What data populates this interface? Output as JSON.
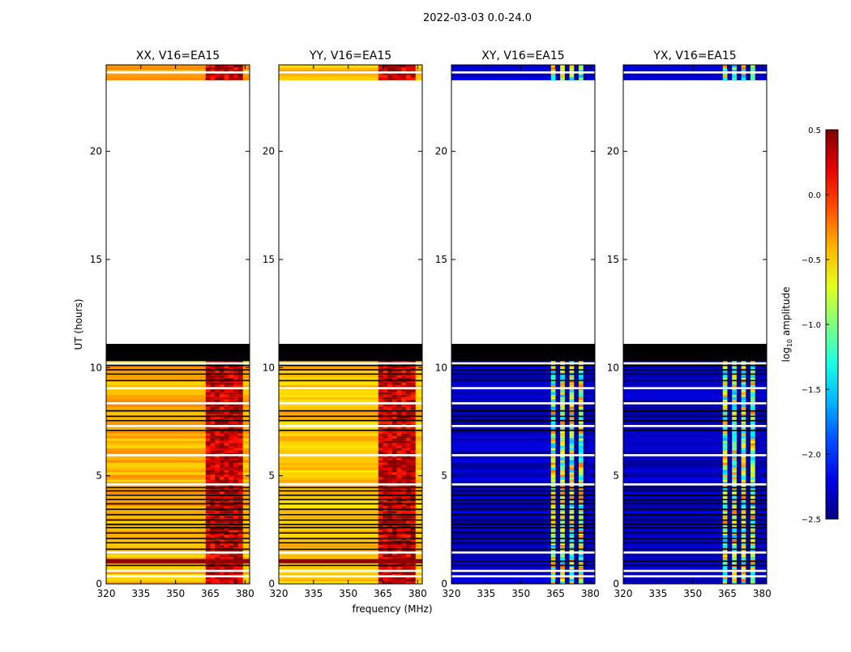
{
  "chart_data": {
    "type": "heatmap",
    "suptitle": "2022-03-03 0.0-24.0",
    "xlabel": "frequency (MHz)",
    "ylabel": "UT (hours)",
    "xlim": [
      320,
      382
    ],
    "ylim": [
      0,
      24
    ],
    "xticks": [
      320,
      335,
      350,
      365,
      380
    ],
    "yticks": [
      0,
      5,
      10,
      15,
      20
    ],
    "panels": [
      {
        "title": "XX, V16=EA15",
        "polarization": "XX",
        "base_level": -0.45,
        "rfi_level": 0.3,
        "show_ylabel": true
      },
      {
        "title": "YY, V16=EA15",
        "polarization": "YY",
        "base_level": -0.5,
        "rfi_level": 0.3,
        "show_ylabel": false
      },
      {
        "title": "XY, V16=EA15",
        "polarization": "XY",
        "base_level": -2.3,
        "rfi_level": -0.9,
        "show_ylabel": false
      },
      {
        "title": "YX, V16=EA15",
        "polarization": "YX",
        "base_level": -2.3,
        "rfi_level": -0.9,
        "show_ylabel": false
      }
    ],
    "data_segments_ut": [
      [
        0.0,
        11.1
      ],
      [
        23.3,
        24.0
      ]
    ],
    "missing_ut": [
      11.1,
      23.3
    ],
    "flagged_block_ut": [
      10.3,
      11.1
    ],
    "rfi_band_mhz": [
      363,
      379
    ],
    "colorbar": {
      "label": "log10 amplitude",
      "colormap": "jet",
      "vmin": -2.5,
      "vmax": 0.5,
      "ticks": [
        0.5,
        0.0,
        -0.5,
        -1.0,
        -1.5,
        -2.0,
        -2.5
      ],
      "tick_labels": [
        "0.5",
        "0.0",
        "−0.5",
        "−1.0",
        "−1.5",
        "−2.0",
        "−2.5"
      ]
    }
  }
}
